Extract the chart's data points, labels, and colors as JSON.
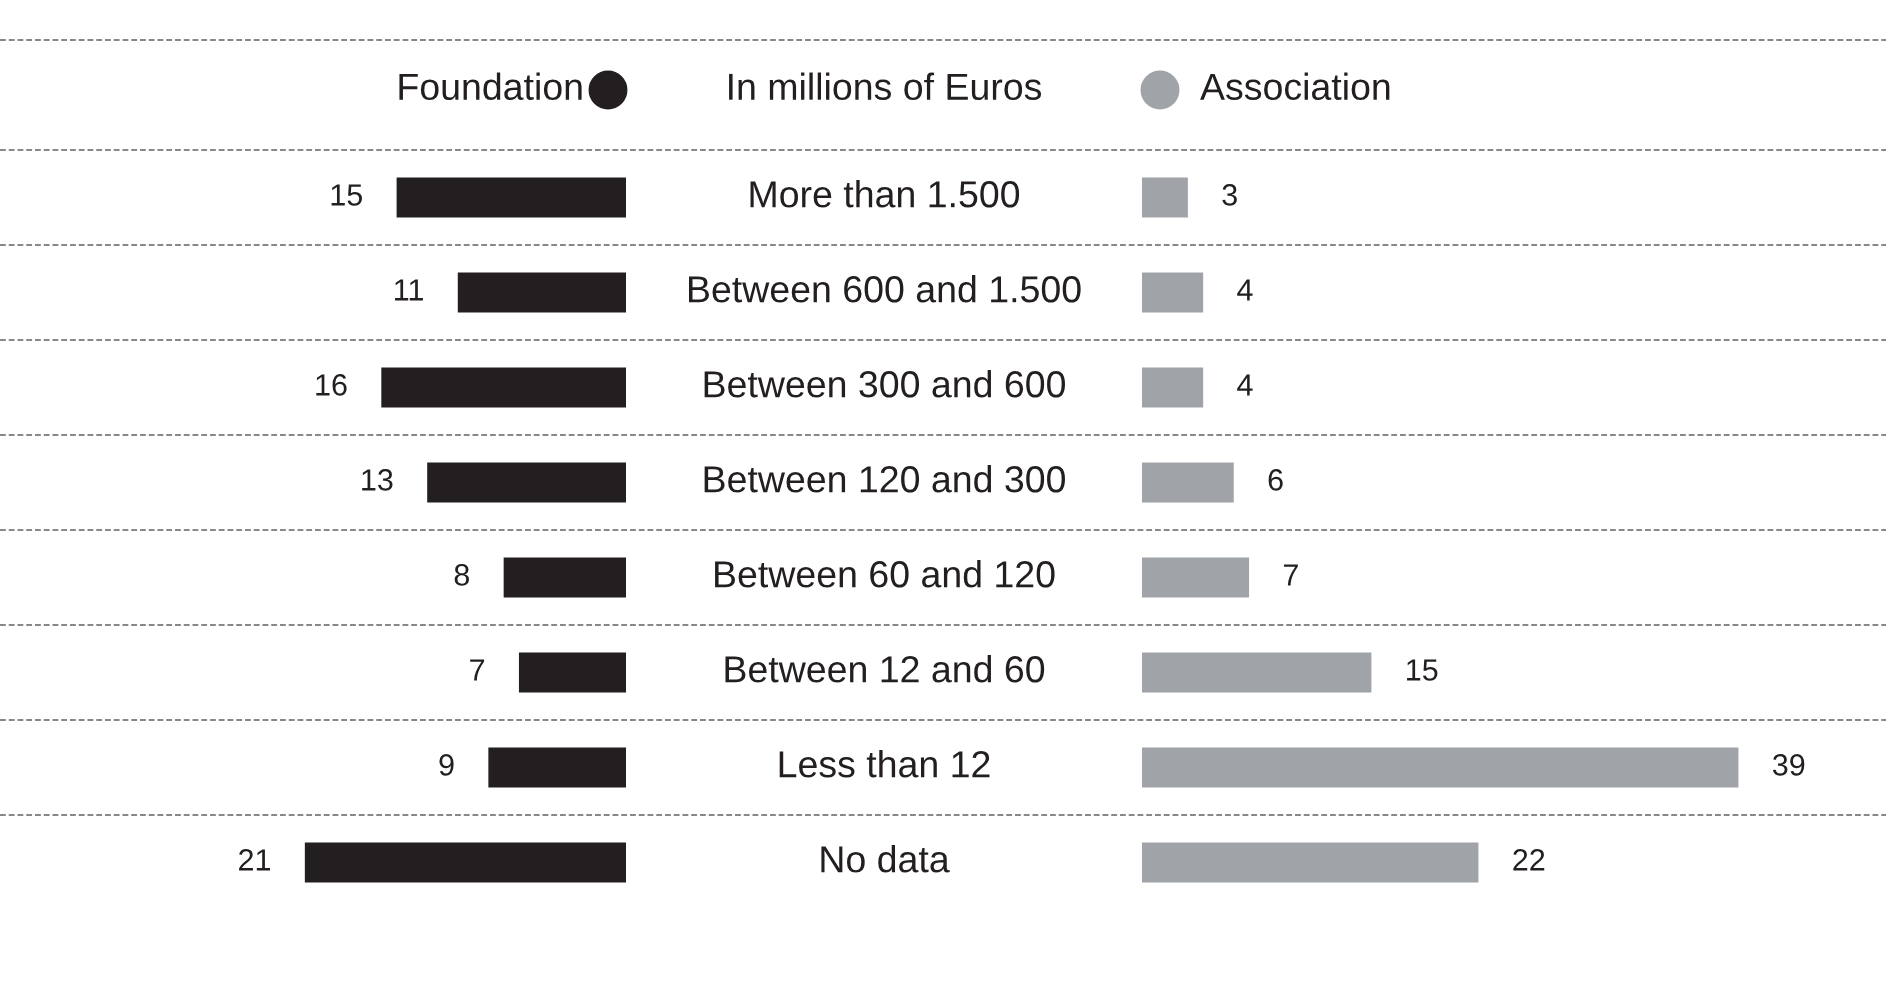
{
  "chart_data": [
    {
      "type": "bar",
      "orientation": "horizontal",
      "title": "In millions of Euros",
      "categories": [
        "More than 1.500",
        "Between 600 and 1.500",
        "Between 300 and 600",
        "Between 120 and 300",
        "Between 60 and 120",
        "Between 12 and 60",
        "Less than 12",
        "No data"
      ],
      "series": [
        {
          "name": "Foundation",
          "color": "#231f20",
          "values": [
            15,
            11,
            16,
            13,
            8,
            7,
            9,
            21
          ]
        }
      ],
      "data_labels": true,
      "legend": "top",
      "grid": "y",
      "line_style": "dashed",
      "marker": "circle"
    },
    {
      "type": "bar",
      "orientation": "horizontal",
      "categories": [
        null,
        null,
        null,
        null,
        null,
        null,
        null,
        null
      ],
      "series": [
        {
          "name": "Association",
          "color": "#a0a4a8",
          "values": [
            3,
            4,
            4,
            6,
            7,
            15,
            39,
            22
          ]
        }
      ],
      "data_labels": true,
      "legend": "top",
      "grid": "y",
      "line_style": "dashed",
      "marker": "circle"
    }
  ]
}
